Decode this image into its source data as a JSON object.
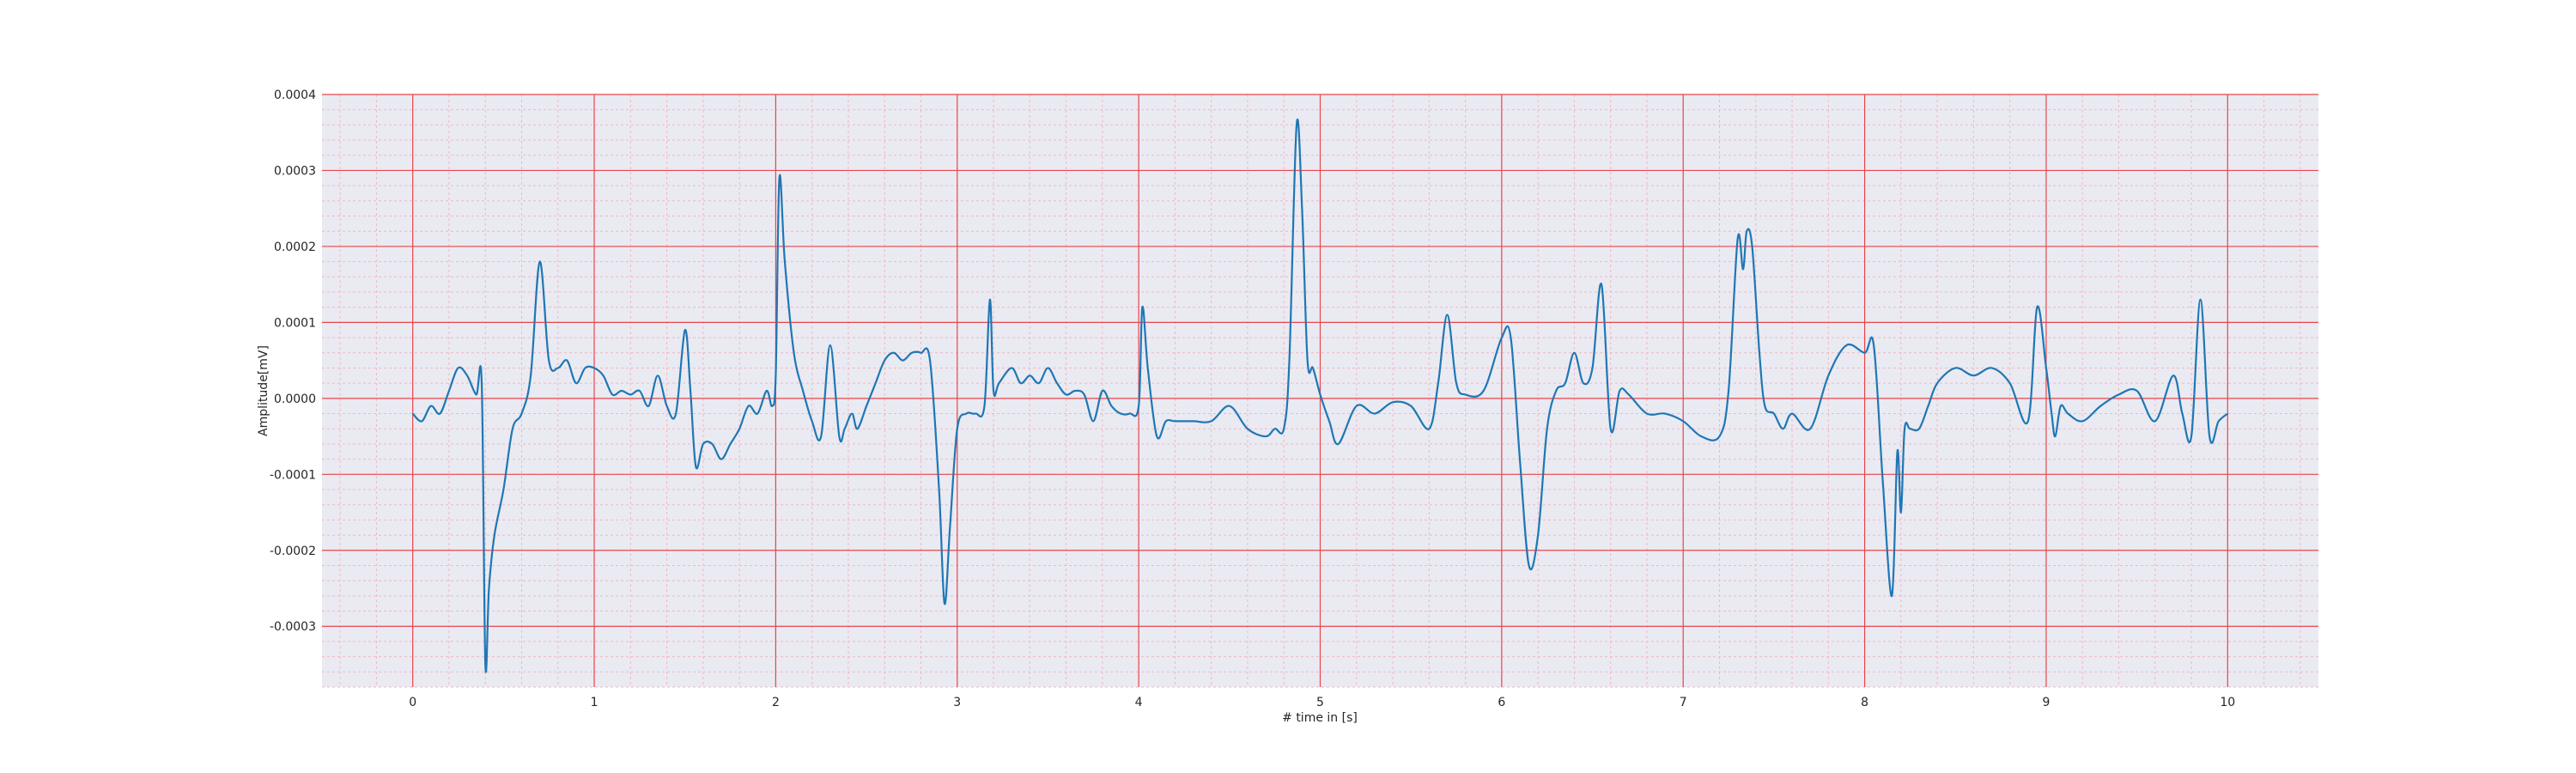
{
  "chart_data": {
    "type": "line",
    "title": "",
    "xlabel": "# time in [s]",
    "ylabel": "Amplitude[mV]",
    "xlim": [
      -0.5,
      10.5
    ],
    "ylim": [
      -0.00038,
      0.0004
    ],
    "xticks": [
      0,
      1,
      2,
      3,
      4,
      5,
      6,
      7,
      8,
      9,
      10
    ],
    "xtick_labels": [
      "0",
      "1",
      "2",
      "3",
      "4",
      "5",
      "6",
      "7",
      "8",
      "9",
      "10"
    ],
    "yticks": [
      0.0004,
      0.0003,
      0.0002,
      0.0001,
      0.0,
      -0.0001,
      -0.0002,
      -0.0003
    ],
    "ytick_labels": [
      "0.0004",
      "0.0003",
      "0.0002",
      "0.0001",
      "0.0000",
      "-0.0001",
      "-0.0002",
      "-0.0003"
    ],
    "grid": true,
    "minor_grid": true,
    "legend": false,
    "colors": {
      "background": "#eaeaf2",
      "major_grid": "#e8474c",
      "minor_grid": "#f2b8c0",
      "line": "#1f77b4"
    },
    "series": [
      {
        "x": [
          0,
          0.05,
          0.1,
          0.15,
          0.2,
          0.25,
          0.3,
          0.35,
          0.38,
          0.4,
          0.42,
          0.45,
          0.5,
          0.55,
          0.6,
          0.65,
          0.7,
          0.75,
          0.8,
          0.85,
          0.9,
          0.95,
          1.0,
          1.05,
          1.1,
          1.15,
          1.2,
          1.25,
          1.3,
          1.35,
          1.4,
          1.45,
          1.5,
          1.53,
          1.56,
          1.6,
          1.65,
          1.7,
          1.75,
          1.8,
          1.85,
          1.9,
          1.95,
          1.98,
          2.0,
          2.02,
          2.05,
          2.1,
          2.15,
          2.2,
          2.25,
          2.3,
          2.35,
          2.38,
          2.42,
          2.45,
          2.5,
          2.55,
          2.6,
          2.65,
          2.7,
          2.75,
          2.8,
          2.85,
          2.9,
          2.93,
          2.96,
          3.0,
          3.05,
          3.1,
          3.15,
          3.18,
          3.2,
          3.23,
          3.3,
          3.35,
          3.4,
          3.45,
          3.5,
          3.55,
          3.6,
          3.65,
          3.7,
          3.75,
          3.8,
          3.85,
          3.9,
          3.95,
          4.0,
          4.02,
          4.05,
          4.1,
          4.15,
          4.2,
          4.3,
          4.4,
          4.5,
          4.6,
          4.7,
          4.75,
          4.8,
          4.83,
          4.87,
          4.9,
          4.93,
          4.96,
          5.0,
          5.05,
          5.1,
          5.2,
          5.3,
          5.4,
          5.5,
          5.6,
          5.65,
          5.7,
          5.75,
          5.8,
          5.9,
          6.0,
          6.05,
          6.1,
          6.15,
          6.2,
          6.25,
          6.3,
          6.35,
          6.4,
          6.45,
          6.5,
          6.55,
          6.6,
          6.65,
          6.7,
          6.8,
          6.9,
          7.0,
          7.1,
          7.2,
          7.25,
          7.3,
          7.33,
          7.35,
          7.38,
          7.42,
          7.45,
          7.5,
          7.55,
          7.6,
          7.7,
          7.8,
          7.9,
          8.0,
          8.05,
          8.1,
          8.15,
          8.18,
          8.2,
          8.22,
          8.25,
          8.3,
          8.35,
          8.4,
          8.5,
          8.6,
          8.7,
          8.8,
          8.9,
          8.95,
          9.0,
          9.03,
          9.05,
          9.08,
          9.12,
          9.2,
          9.3,
          9.4,
          9.5,
          9.6,
          9.7,
          9.75,
          9.8,
          9.85,
          9.9,
          9.95,
          10.0
        ],
        "y": [
          -2e-05,
          -3e-05,
          -1e-05,
          -2e-05,
          1e-05,
          4e-05,
          3e-05,
          5e-06,
          2e-05,
          -0.00035,
          -0.00025,
          -0.00018,
          -0.00012,
          -4e-05,
          -2e-05,
          3e-05,
          0.00018,
          5e-05,
          4e-05,
          5e-05,
          2e-05,
          4e-05,
          4e-05,
          3e-05,
          5e-06,
          1e-05,
          5e-06,
          1e-05,
          -1e-05,
          3e-05,
          -1e-05,
          -2e-05,
          9e-05,
          1e-05,
          -9e-05,
          -6e-05,
          -6e-05,
          -8e-05,
          -6e-05,
          -4e-05,
          -1e-05,
          -2e-05,
          1e-05,
          -1e-05,
          3e-05,
          0.00029,
          0.00018,
          6e-05,
          1e-05,
          -3e-05,
          -5e-05,
          7e-05,
          -5e-05,
          -4e-05,
          -2e-05,
          -4e-05,
          -1e-05,
          2e-05,
          5e-05,
          6e-05,
          5e-05,
          6e-05,
          6e-05,
          5e-05,
          -0.00012,
          -0.00027,
          -0.00017,
          -4e-05,
          -2e-05,
          -2e-05,
          -1e-05,
          0.00013,
          1e-05,
          2e-05,
          4e-05,
          2e-05,
          3e-05,
          2e-05,
          4e-05,
          2e-05,
          5e-06,
          1e-05,
          5e-06,
          -3e-05,
          1e-05,
          -1e-05,
          -2e-05,
          -2e-05,
          -1e-05,
          0.00012,
          4e-05,
          -5e-05,
          -3e-05,
          -3e-05,
          -3e-05,
          -3e-05,
          -1e-05,
          -4e-05,
          -5e-05,
          -4e-05,
          -4e-05,
          5e-05,
          0.00036,
          0.00025,
          5e-05,
          4e-05,
          5e-06,
          -3e-05,
          -6e-05,
          -1e-05,
          -2e-05,
          -5e-06,
          -1e-05,
          -4e-05,
          2e-05,
          0.00011,
          2e-05,
          5e-06,
          1e-05,
          8e-05,
          8e-05,
          -8e-05,
          -0.00022,
          -0.00018,
          -4e-05,
          1e-05,
          2e-05,
          6e-05,
          2e-05,
          4e-05,
          0.00015,
          -4e-05,
          1e-05,
          5e-06,
          -2e-05,
          -2e-05,
          -3e-05,
          -5e-05,
          -5e-05,
          1e-05,
          0.00021,
          0.00017,
          0.00022,
          0.0002,
          6e-05,
          -1e-05,
          -2e-05,
          -4e-05,
          -2e-05,
          -4e-05,
          3e-05,
          7e-05,
          6e-05,
          7e-05,
          -0.00011,
          -0.00026,
          -7e-05,
          -0.00015,
          -4e-05,
          -4e-05,
          -4e-05,
          -1e-05,
          2e-05,
          4e-05,
          3e-05,
          4e-05,
          2e-05,
          -3e-05,
          0.00012,
          4e-05,
          -2e-05,
          -5e-05,
          -1e-05,
          -2e-05,
          -3e-05,
          -1e-05,
          5e-06,
          1e-05,
          -3e-05,
          3e-05,
          -2e-05,
          -5e-05,
          0.00013,
          -5e-05,
          -3e-05,
          -2e-05
        ]
      }
    ]
  }
}
